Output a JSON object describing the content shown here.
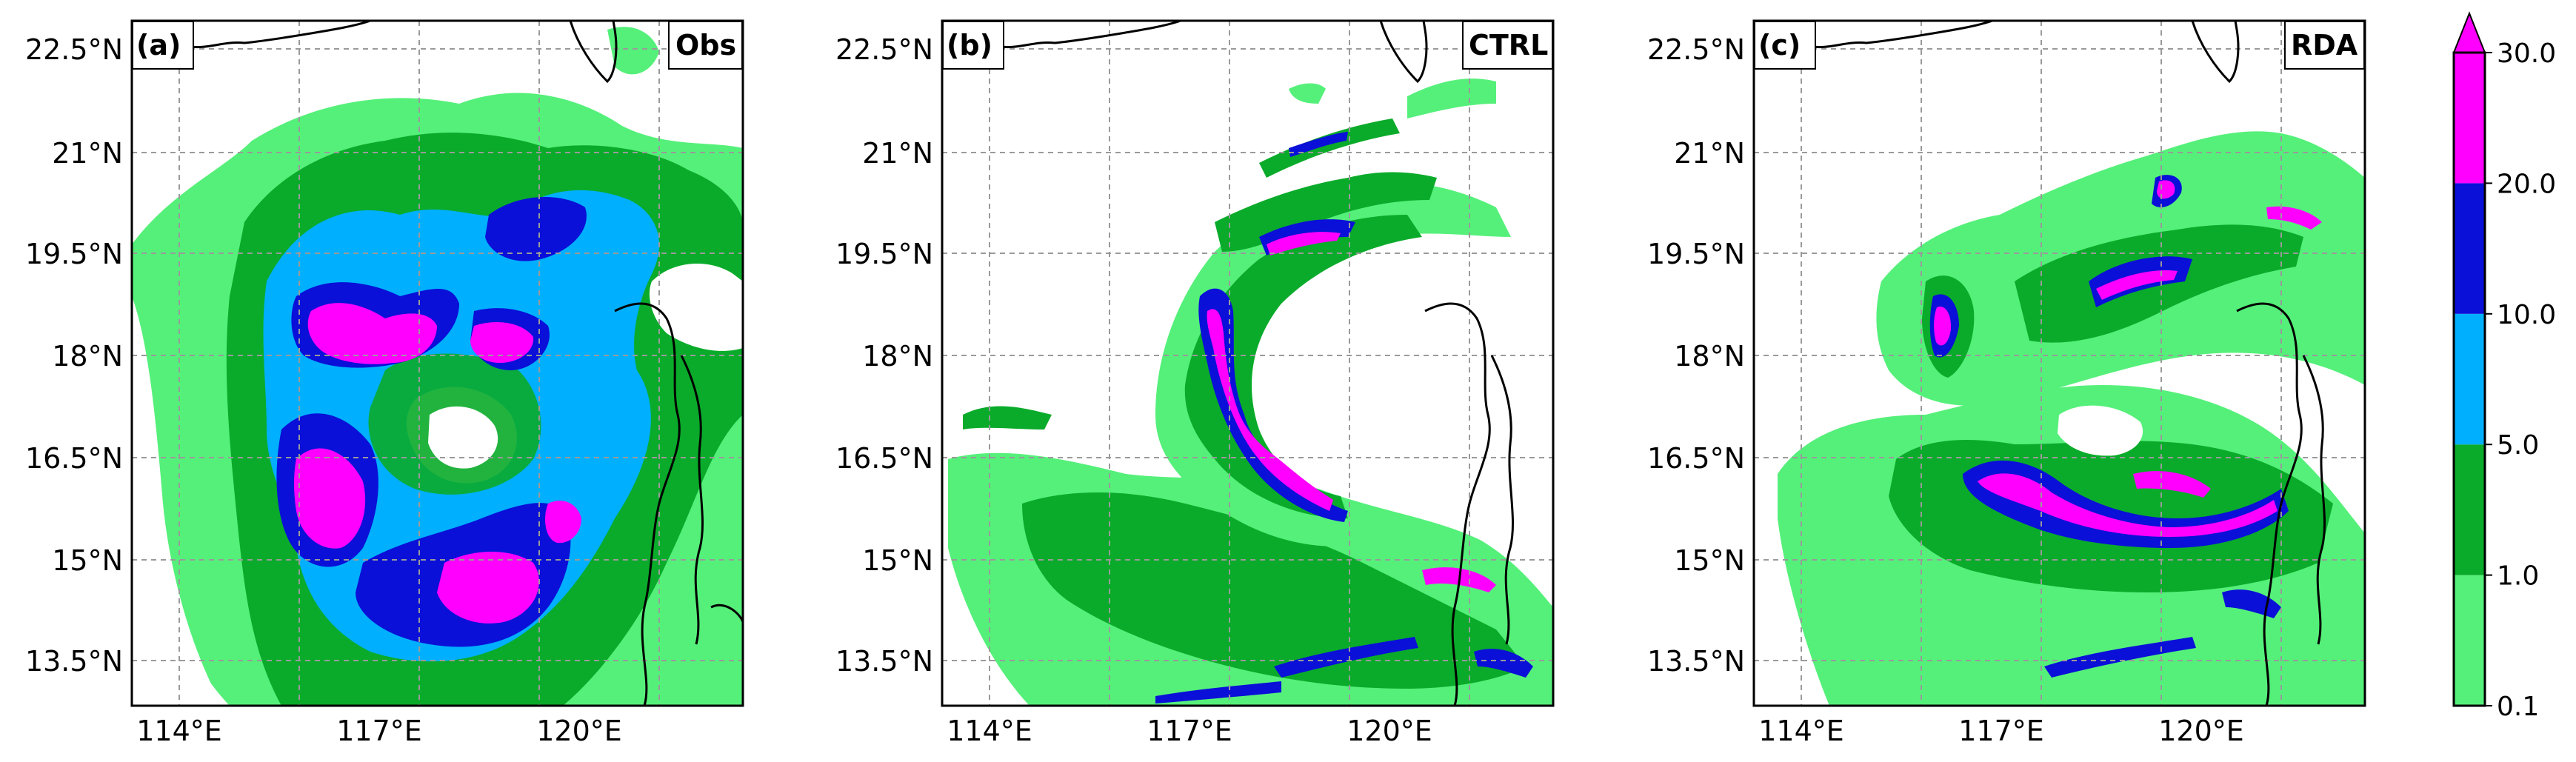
{
  "figure": {
    "lon_ticks": [
      "114°E",
      "117°E",
      "120°E"
    ],
    "lat_ticks": [
      "22.5°N",
      "21°N",
      "19.5°N",
      "18°N",
      "16.5°N",
      "15°N",
      "13.5°N"
    ],
    "panels": [
      {
        "tag": "(a)",
        "name": "Obs"
      },
      {
        "tag": "(b)",
        "name": "CTRL"
      },
      {
        "tag": "(c)",
        "name": "RDA"
      }
    ]
  },
  "colorbar": {
    "levels": [
      "0.1",
      "1.0",
      "5.0",
      "10.0",
      "20.0",
      "30.0"
    ],
    "colors": [
      "#55f07a",
      "#0aab2a",
      "#00b0ff",
      "#0a10d8",
      "#ff00ff"
    ],
    "extend": "max"
  },
  "colors": {
    "light_green": "#55f07a",
    "green": "#0aab2a",
    "light_blue": "#00b0ff",
    "blue": "#0a10d8",
    "magenta": "#ff00ff",
    "grid": "#9a9a9a",
    "coast": "#000000"
  }
}
